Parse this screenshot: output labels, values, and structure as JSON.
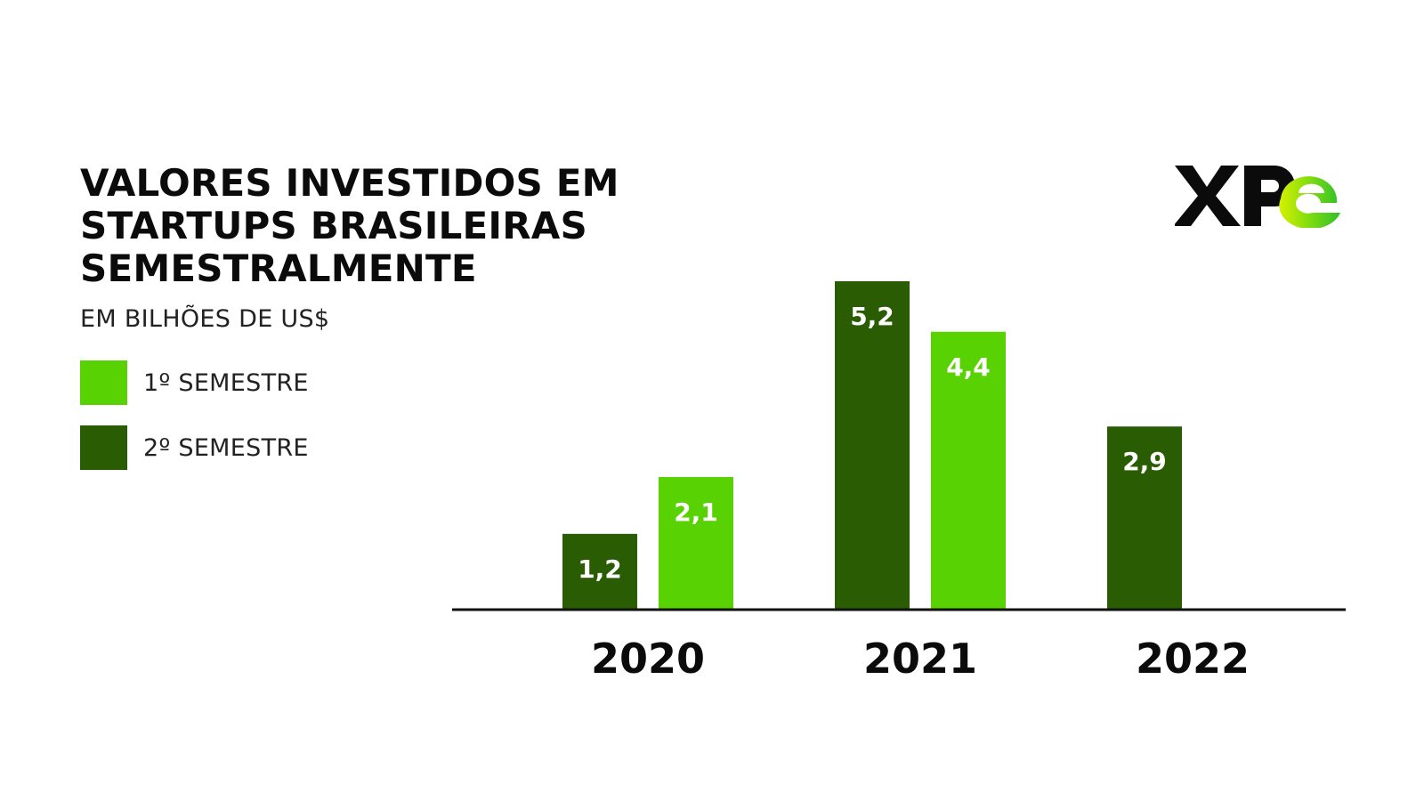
{
  "chart_data": {
    "type": "bar",
    "title": "VALORES INVESTIDOS EM STARTUPS BRASILEIRAS SEMESTRALMENTE",
    "title_lines": [
      "VALORES INVESTIDOS EM",
      "STARTUPS BRASILEIRAS",
      "SEMESTRALMENTE"
    ],
    "subtitle": "EM BILHÕES DE US$",
    "categories": [
      "2020",
      "2021",
      "2022"
    ],
    "series": [
      {
        "name": "2º SEMESTRE",
        "color": "#2a5c03",
        "values": [
          1.2,
          5.2,
          2.9
        ],
        "labels": [
          "1,2",
          "5,2",
          "2,9"
        ]
      },
      {
        "name": "1º SEMESTRE",
        "color": "#58d202",
        "values": [
          2.1,
          4.4,
          null
        ],
        "labels": [
          "2,1",
          "4,4",
          null
        ]
      }
    ],
    "legend": {
      "placement": "left",
      "items": [
        {
          "label": "1º SEMESTRE",
          "color": "#58d202"
        },
        {
          "label": "2º SEMESTRE",
          "color": "#2a5c03"
        }
      ]
    },
    "ylim": [
      0,
      5.2
    ],
    "grid": false,
    "xlabel": "",
    "ylabel": ""
  },
  "logo": {
    "text_main": "XP",
    "text_accent": "e",
    "icon": "xpe-logo-icon"
  },
  "colors": {
    "dark_green": "#2a5c03",
    "light_green": "#58d202",
    "text": "#0b0b0b",
    "axis": "#111111"
  }
}
